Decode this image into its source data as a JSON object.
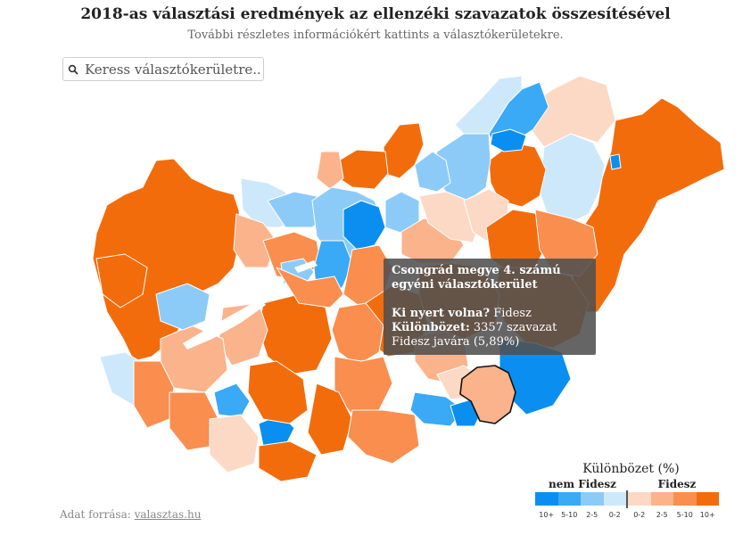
{
  "header": {
    "title": "2018-as választási eredmények az ellenzéki szavazatok összesítésével",
    "subtitle": "További részletes információkért kattints a választókerületekre."
  },
  "search": {
    "placeholder": "Keress választókerületre..",
    "icon": "search-icon"
  },
  "tooltip": {
    "title": "Csongrád megye 4. számú egyéni választókerület",
    "winner_label": "Ki nyert volna?",
    "winner_value": "Fidesz",
    "diff_label": "Különbözet:",
    "diff_value": "3357 szavazat Fidesz javára (5,89%)"
  },
  "legend": {
    "title": "Különbözet (%)",
    "left_label": "nem Fidesz",
    "right_label": "Fidesz",
    "ticks": [
      "10+",
      "5-10",
      "2-5",
      "0-2",
      "0-2",
      "2-5",
      "5-10",
      "10+"
    ],
    "colors": [
      "#0a8ff0",
      "#3aa9f6",
      "#8ccbf8",
      "#cde8fb",
      "#fcd9c5",
      "#fbb38c",
      "#f98e4f",
      "#f36c0c"
    ]
  },
  "source": {
    "label": "Adat forrása:",
    "link_text": "valasztas.hu"
  },
  "colors": {
    "nf10": "#0a8ff0",
    "nf5": "#3aa9f6",
    "nf2": "#8ccbf8",
    "nf0": "#cde8fb",
    "f0": "#fcd9c5",
    "f2": "#fbb38c",
    "f5": "#f98e4f",
    "f10": "#f36c0c",
    "lake": "#ffffff",
    "highlight_outline": "#111111"
  }
}
